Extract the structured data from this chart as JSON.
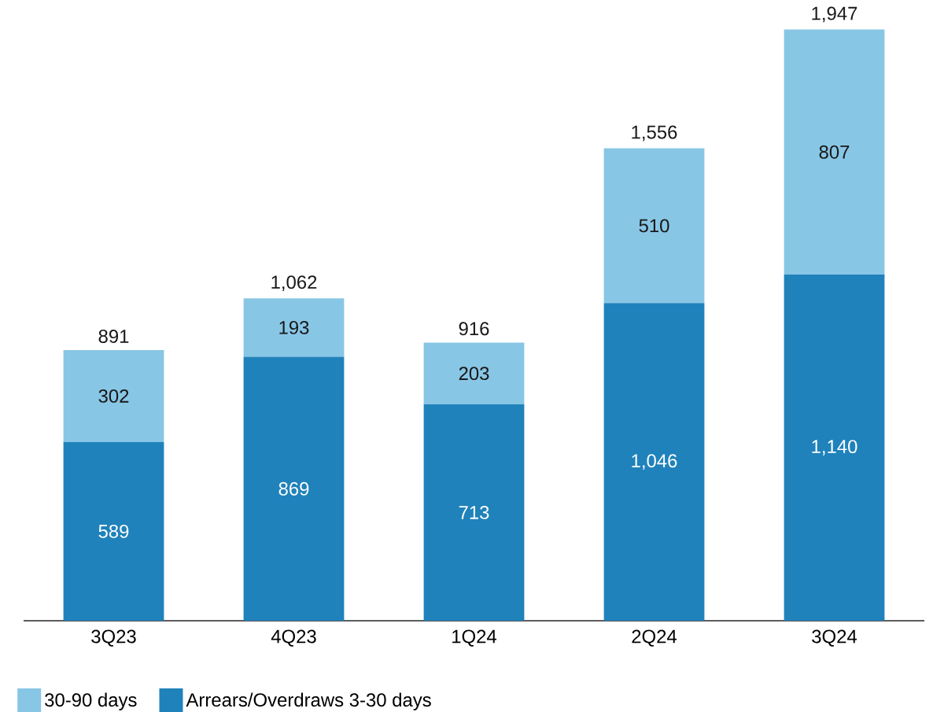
{
  "chart_data": {
    "type": "bar",
    "stacked": true,
    "categories": [
      "3Q23",
      "4Q23",
      "1Q24",
      "2Q24",
      "3Q24"
    ],
    "series": [
      {
        "name": "Arrears/Overdraws 3-30 days",
        "color": "#1f82bb",
        "values": [
          589,
          869,
          713,
          1046,
          1140
        ],
        "value_labels": [
          "589",
          "869",
          "713",
          "1,046",
          "1,140"
        ]
      },
      {
        "name": "30-90 days",
        "color": "#88c6e5",
        "values": [
          302,
          193,
          203,
          510,
          807
        ],
        "value_labels": [
          "302",
          "193",
          "203",
          "510",
          "807"
        ]
      }
    ],
    "totals": [
      "891",
      "1,062",
      "916",
      "1,556",
      "1,947"
    ],
    "tick_labels": "x",
    "legend": "bottom left"
  }
}
